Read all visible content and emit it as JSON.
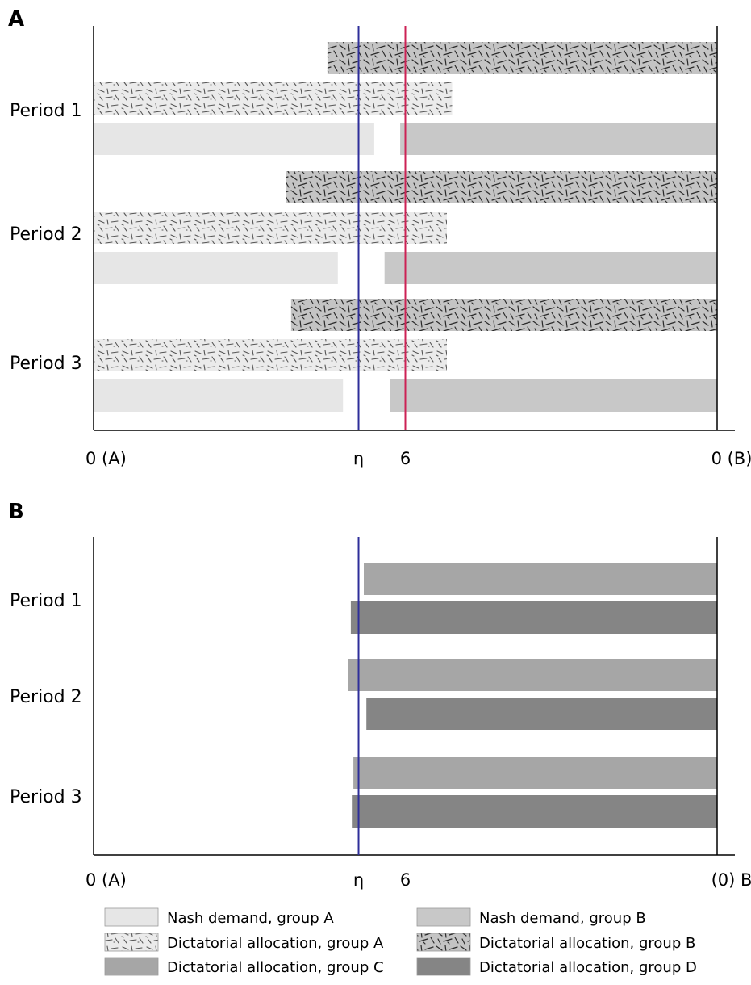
{
  "chart_data": [
    {
      "panel": "A",
      "type": "bar",
      "subtype": "range-bar",
      "x_ticks": [
        "0 (A)",
        "η",
        "6",
        "0 (B)"
      ],
      "x_range": [
        0,
        12
      ],
      "reference_lines": [
        {
          "label": "η",
          "value": 5.1,
          "color": "#2e2e9a"
        },
        {
          "label": "6",
          "value": 6,
          "color": "#cc2255"
        }
      ],
      "categories": [
        "Period 1",
        "Period 2",
        "Period 3"
      ],
      "series": [
        {
          "name": "Dictatorial allocation, group B",
          "fill": "pattern-dark",
          "color": "#c4c4c4",
          "ranges": [
            [
              4.5,
              12
            ],
            [
              3.7,
              12
            ],
            [
              3.8,
              12
            ]
          ]
        },
        {
          "name": "Dictatorial allocation, group A",
          "fill": "pattern-light",
          "color": "#ebebeb",
          "ranges": [
            [
              0,
              6.9
            ],
            [
              0,
              6.8
            ],
            [
              0,
              6.8
            ]
          ]
        },
        {
          "name": "Nash demand, group A",
          "fill": "solid",
          "color": "#e6e6e6",
          "ranges": [
            [
              0,
              5.4
            ],
            [
              0,
              4.7
            ],
            [
              0,
              4.8
            ]
          ]
        },
        {
          "name": "Nash demand, group B",
          "fill": "solid",
          "color": "#c8c8c8",
          "ranges": [
            [
              5.9,
              12
            ],
            [
              5.6,
              12
            ],
            [
              5.7,
              12
            ]
          ]
        }
      ]
    },
    {
      "panel": "B",
      "type": "bar",
      "subtype": "range-bar",
      "x_ticks": [
        "0 (A)",
        "η",
        "6",
        "(0) B"
      ],
      "x_range": [
        0,
        12
      ],
      "reference_lines": [
        {
          "label": "η",
          "value": 5.1,
          "color": "#2e2e9a"
        }
      ],
      "categories": [
        "Period 1",
        "Period 2",
        "Period 3"
      ],
      "series": [
        {
          "name": "Dictatorial allocation, group C",
          "fill": "solid",
          "color": "#a6a6a6",
          "ranges": [
            [
              5.2,
              12
            ],
            [
              4.9,
              12
            ],
            [
              5.0,
              12
            ]
          ]
        },
        {
          "name": "Dictatorial allocation, group D",
          "fill": "solid",
          "color": "#858585",
          "ranges": [
            [
              4.95,
              12
            ],
            [
              5.25,
              12
            ],
            [
              4.97,
              12
            ]
          ]
        }
      ]
    }
  ],
  "legend": {
    "items": [
      {
        "label": "Nash demand, group A",
        "fill": "solid",
        "color": "#e6e6e6"
      },
      {
        "label": "Nash demand, group B",
        "fill": "solid",
        "color": "#c8c8c8"
      },
      {
        "label": "Dictatorial allocation, group A",
        "fill": "pattern-light",
        "color": "#ebebeb"
      },
      {
        "label": "Dictatorial allocation, group B",
        "fill": "pattern-dark",
        "color": "#c4c4c4"
      },
      {
        "label": "Dictatorial allocation, group C",
        "fill": "solid",
        "color": "#a6a6a6"
      },
      {
        "label": "Dictatorial allocation, group D",
        "fill": "solid",
        "color": "#858585"
      }
    ]
  }
}
